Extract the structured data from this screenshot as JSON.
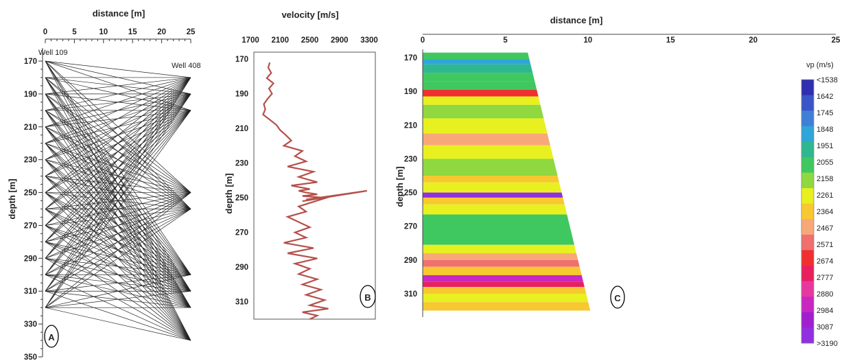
{
  "chart_data": [
    {
      "type": "line",
      "panel_label": "A",
      "title": "",
      "xlabel": "distance [m]",
      "ylabel": "depth [m]",
      "xlim": [
        0,
        25
      ],
      "ylim": [
        350,
        165
      ],
      "x_ticks": [
        "0",
        "5",
        "10",
        "15",
        "20",
        "25"
      ],
      "y_ticks": [
        "170",
        "190",
        "210",
        "230",
        "250",
        "270",
        "290",
        "310",
        "330",
        "350"
      ],
      "annotations": [
        "Well 109",
        "Well 408"
      ],
      "sources_depth": [
        170,
        180,
        190,
        200,
        210,
        220,
        230,
        240,
        250,
        260,
        270,
        280,
        290,
        300,
        310,
        320
      ],
      "receivers_depth": [
        180,
        190,
        200,
        250,
        260,
        300,
        310,
        320,
        340
      ],
      "source_x": 0,
      "receiver_x": 25
    },
    {
      "type": "line",
      "panel_label": "B",
      "title": "",
      "xlabel": "velocity [m/s]",
      "ylabel": "depth [m]",
      "xlim": [
        1700,
        3300
      ],
      "ylim": [
        320,
        170
      ],
      "x_ticks": [
        "1700",
        "2100",
        "2500",
        "2900",
        "3300"
      ],
      "y_ticks": [
        "170",
        "190",
        "210",
        "230",
        "250",
        "270",
        "290",
        "310"
      ],
      "series": [
        {
          "color": "#b5504a",
          "x": [
            1960,
            1940,
            1980,
            1920,
            2010,
            1950,
            1990,
            1930,
            1880,
            1900,
            1870,
            1960,
            2050,
            2100,
            2180,
            2250,
            2150,
            2400,
            2300,
            2450,
            2200,
            2550,
            2350,
            2600,
            2250,
            2500,
            2350,
            2450,
            2600,
            2400,
            2700,
            2450,
            3270,
            2400,
            2800,
            2350,
            2450,
            2200,
            2350,
            2500,
            2300,
            2450,
            2150,
            2550,
            2200,
            2600,
            2300,
            2500,
            2350,
            2600,
            2400,
            2650,
            2450,
            2700,
            2500,
            2750,
            2400,
            2600,
            2500
          ],
          "y": [
            172,
            175,
            178,
            181,
            184,
            187,
            190,
            193,
            196,
            199,
            202,
            205,
            208,
            211,
            214,
            217,
            220,
            223,
            226,
            229,
            232,
            235,
            238,
            241,
            243,
            245,
            246,
            247,
            248,
            249,
            250,
            251,
            246,
            252,
            249,
            255,
            258,
            261,
            264,
            267,
            270,
            273,
            276,
            279,
            282,
            285,
            288,
            291,
            294,
            297,
            300,
            303,
            306,
            309,
            312,
            314,
            316,
            318,
            320
          ]
        }
      ]
    },
    {
      "type": "heatmap",
      "panel_label": "C",
      "title": "",
      "xlabel": "distance [m]",
      "ylabel": "depth [m]",
      "xlim": [
        0,
        25
      ],
      "ylim": [
        320,
        165
      ],
      "x_ticks": [
        "0",
        "5",
        "10",
        "15",
        "20",
        "25"
      ],
      "y_ticks": [
        "170",
        "190",
        "210",
        "230",
        "250",
        "270",
        "290",
        "310"
      ],
      "legend_title": "vp (m/s)",
      "legend_ticks": [
        "<1538",
        "1642",
        "1745",
        "1848",
        "1951",
        "2055",
        "2158",
        "2261",
        "2364",
        "2467",
        "2571",
        "2674",
        "2777",
        "2880",
        "2984",
        "3087",
        ">3190"
      ],
      "legend_colors": [
        "#2f2fb0",
        "#3b55c8",
        "#3f7fd8",
        "#2fa5d9",
        "#2fb890",
        "#3fc860",
        "#8fd840",
        "#e8f020",
        "#f8c830",
        "#f8a878",
        "#f06f6f",
        "#f03030",
        "#e82060",
        "#e838a0",
        "#c828c0",
        "#a020d0",
        "#9030e0"
      ],
      "bands": [
        {
          "depth_top": 167,
          "depth_bottom": 171,
          "vp": 2000
        },
        {
          "depth_top": 171,
          "depth_bottom": 174,
          "vp": 1750
        },
        {
          "depth_top": 174,
          "depth_bottom": 179,
          "vp": 1950
        },
        {
          "depth_top": 179,
          "depth_bottom": 184,
          "vp": 2050
        },
        {
          "depth_top": 184,
          "depth_bottom": 189,
          "vp": 2000
        },
        {
          "depth_top": 189,
          "depth_bottom": 193,
          "vp": 2600
        },
        {
          "depth_top": 193,
          "depth_bottom": 198,
          "vp": 2200
        },
        {
          "depth_top": 198,
          "depth_bottom": 206,
          "vp": 2150
        },
        {
          "depth_top": 206,
          "depth_bottom": 215,
          "vp": 2260
        },
        {
          "depth_top": 215,
          "depth_bottom": 222,
          "vp": 2380
        },
        {
          "depth_top": 222,
          "depth_bottom": 230,
          "vp": 2250
        },
        {
          "depth_top": 230,
          "depth_bottom": 240,
          "vp": 2150
        },
        {
          "depth_top": 240,
          "depth_bottom": 244,
          "vp": 2330
        },
        {
          "depth_top": 244,
          "depth_bottom": 250,
          "vp": 2250
        },
        {
          "depth_top": 250,
          "depth_bottom": 253,
          "vp": 3150
        },
        {
          "depth_top": 253,
          "depth_bottom": 257,
          "vp": 2350
        },
        {
          "depth_top": 257,
          "depth_bottom": 263,
          "vp": 2250
        },
        {
          "depth_top": 263,
          "depth_bottom": 281,
          "vp": 2050
        },
        {
          "depth_top": 281,
          "depth_bottom": 286,
          "vp": 2250
        },
        {
          "depth_top": 286,
          "depth_bottom": 290,
          "vp": 2380
        },
        {
          "depth_top": 290,
          "depth_bottom": 294,
          "vp": 2500
        },
        {
          "depth_top": 294,
          "depth_bottom": 299,
          "vp": 2330
        },
        {
          "depth_top": 299,
          "depth_bottom": 303,
          "vp": 2900
        },
        {
          "depth_top": 303,
          "depth_bottom": 306,
          "vp": 2700
        },
        {
          "depth_top": 306,
          "depth_bottom": 310,
          "vp": 2300
        },
        {
          "depth_top": 310,
          "depth_bottom": 315,
          "vp": 2250
        },
        {
          "depth_top": 315,
          "depth_bottom": 320,
          "vp": 2350
        }
      ]
    }
  ]
}
